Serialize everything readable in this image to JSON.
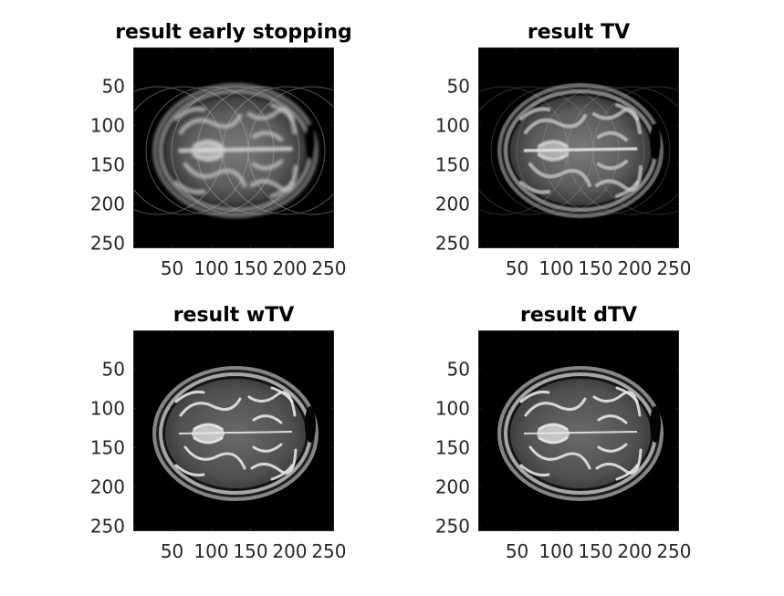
{
  "figure": {
    "background": "#ffffff",
    "image_background": "#000000",
    "panels": [
      {
        "title": "result early stopping",
        "variant": "early-stopping",
        "xticks": [
          "50",
          "100",
          "150",
          "200",
          "250"
        ],
        "yticks": [
          "50",
          "100",
          "150",
          "200",
          "250"
        ]
      },
      {
        "title": "result TV",
        "variant": "tv",
        "xticks": [
          "50",
          "100",
          "150",
          "200",
          "250"
        ],
        "yticks": [
          "50",
          "100",
          "150",
          "200",
          "250"
        ]
      },
      {
        "title": "result wTV",
        "variant": "wtv",
        "xticks": [
          "50",
          "100",
          "150",
          "200",
          "250"
        ],
        "yticks": [
          "50",
          "100",
          "150",
          "200",
          "250"
        ]
      },
      {
        "title": "result dTV",
        "variant": "dtv",
        "xticks": [
          "50",
          "100",
          "150",
          "200",
          "250"
        ],
        "yticks": [
          "50",
          "100",
          "150",
          "200",
          "250"
        ]
      }
    ]
  }
}
